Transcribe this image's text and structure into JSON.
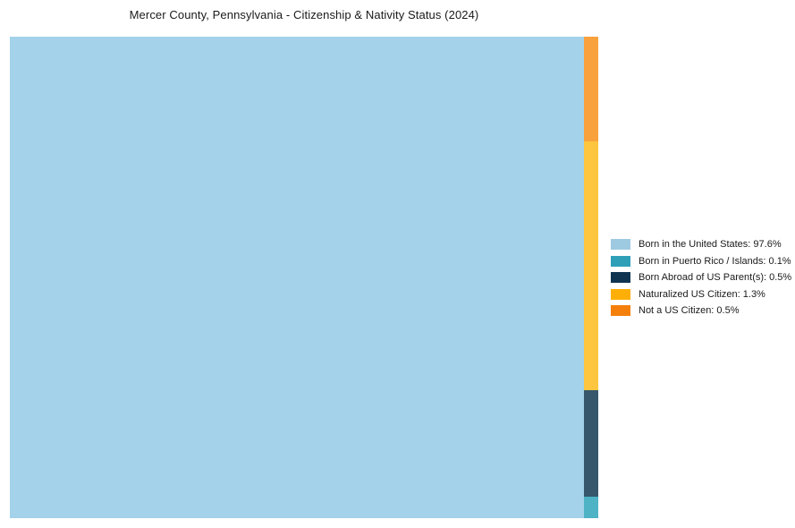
{
  "title": "Mercer County, Pennsylvania - Citizenship & Nativity Status (2024)",
  "chart_data": {
    "type": "treemap",
    "title": "Mercer County, Pennsylvania - Citizenship & Nativity Status (2024)",
    "unit": "%",
    "total": 100,
    "legend_position": "right",
    "series": [
      {
        "name": "Born in the United States",
        "value": 97.6,
        "tile_color": "#a3d2ea",
        "legend_color": "#9ecae1"
      },
      {
        "name": "Born in Puerto Rico / Islands",
        "value": 0.1,
        "tile_color": "#4db3c5",
        "legend_color": "#2f9fb8"
      },
      {
        "name": "Born Abroad of US Parent(s)",
        "value": 0.5,
        "tile_color": "#36576c",
        "legend_color": "#0f3450"
      },
      {
        "name": "Naturalized US Citizen",
        "value": 1.3,
        "tile_color": "#fec63e",
        "legend_color": "#feaf07"
      },
      {
        "name": "Not a US Citizen",
        "value": 0.5,
        "tile_color": "#f9a13c",
        "legend_color": "#f57f0b"
      }
    ]
  },
  "colors": {
    "background": "#ffffff",
    "tile_born_us": "#a3d2ea",
    "tile_puerto_rico": "#4db3c5",
    "tile_born_abroad": "#36576c",
    "tile_naturalized": "#fec63e",
    "tile_not_citizen": "#f9a13c"
  },
  "legend": {
    "items": [
      {
        "label": "Born in the United States: 97.6%",
        "color": "#9ecae1"
      },
      {
        "label": "Born in Puerto Rico / Islands: 0.1%",
        "color": "#2f9fb8"
      },
      {
        "label": "Born Abroad of US Parent(s): 0.5%",
        "color": "#0f3450"
      },
      {
        "label": "Naturalized US Citizen: 1.3%",
        "color": "#feaf07"
      },
      {
        "label": "Not a US Citizen: 0.5%",
        "color": "#f57f0b"
      }
    ]
  }
}
